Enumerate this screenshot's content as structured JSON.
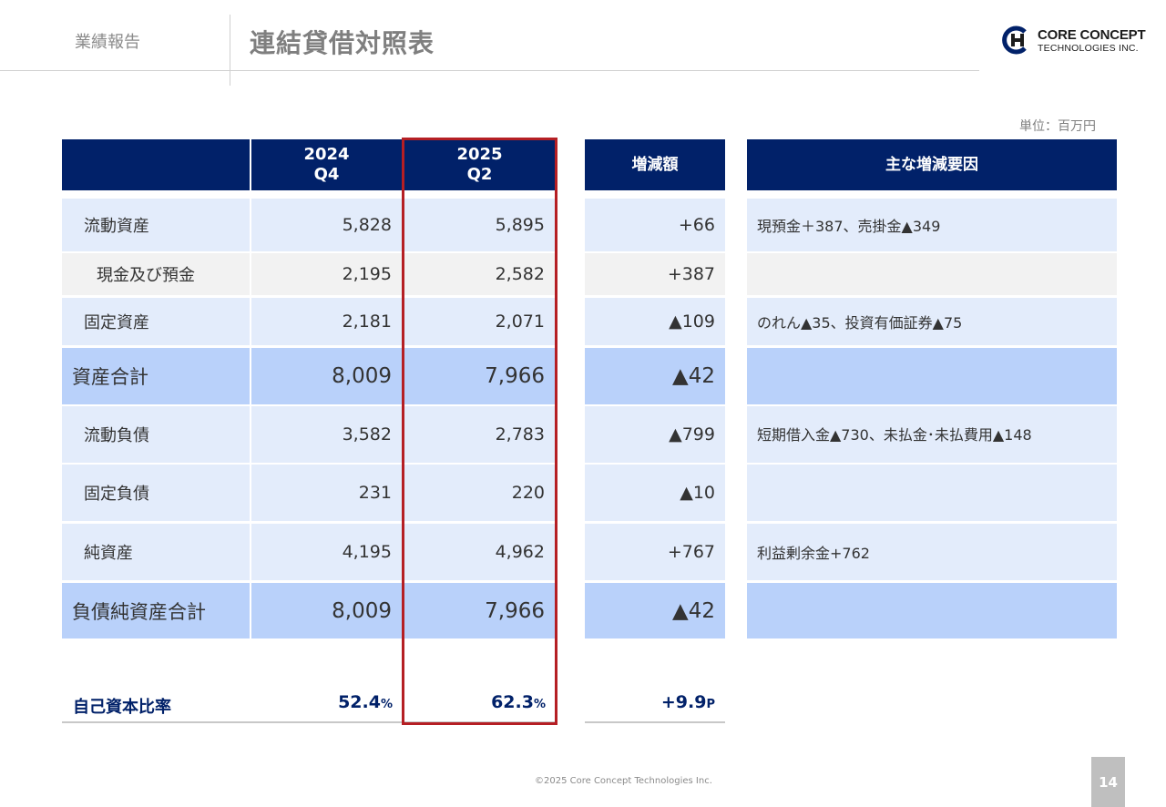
{
  "header": {
    "section": "業績報告",
    "title": "連結貸借対照表",
    "logo_line1": "CORE CONCEPT",
    "logo_line2": "TECHNOLOGIES INC."
  },
  "unit_label": "単位：百万円",
  "table": {
    "headers": {
      "col1": [
        "2024",
        "Q4"
      ],
      "col2": [
        "2025",
        "Q2"
      ],
      "diff": "増減額",
      "reason": "主な増減要因"
    },
    "rows": [
      {
        "label": "流動資産",
        "v2024": "5,828",
        "v2025": "5,895",
        "diff": "+66",
        "reason": "現預金＋387、売掛金▲349"
      },
      {
        "label": "現金及び預金",
        "v2024": "2,195",
        "v2025": "2,582",
        "diff": "+387",
        "reason": ""
      },
      {
        "label": "固定資産",
        "v2024": "2,181",
        "v2025": "2,071",
        "diff": "▲109",
        "reason": "のれん▲35、投資有価証券▲75"
      },
      {
        "label": "資産合計",
        "v2024": "8,009",
        "v2025": "7,966",
        "diff": "▲42",
        "reason": ""
      },
      {
        "label": "流動負債",
        "v2024": "3,582",
        "v2025": "2,783",
        "diff": "▲799",
        "reason": "短期借入金▲730、未払金･未払費用▲148"
      },
      {
        "label": "固定負債",
        "v2024": "231",
        "v2025": "220",
        "diff": "▲10",
        "reason": ""
      },
      {
        "label": "純資産",
        "v2024": "4,195",
        "v2025": "4,962",
        "diff": "+767",
        "reason": "利益剰余金+762"
      },
      {
        "label": "負債純資産合計",
        "v2024": "8,009",
        "v2025": "7,966",
        "diff": "▲42",
        "reason": ""
      }
    ],
    "equity_ratio": {
      "label": "自己資本比率",
      "v2024": "52.4",
      "v2025": "62.3",
      "pct_suffix": "%",
      "diff": "+9.9",
      "diff_suffix": "P"
    }
  },
  "footer": {
    "copyright": "©2025 Core Concept Technologies Inc.",
    "page": "14"
  },
  "colors": {
    "navy": "#012169",
    "row_light": "#e3ecfb",
    "row_total": "#b9d1fa",
    "row_gray": "#f2f2f2",
    "highlight": "#b51f24"
  }
}
